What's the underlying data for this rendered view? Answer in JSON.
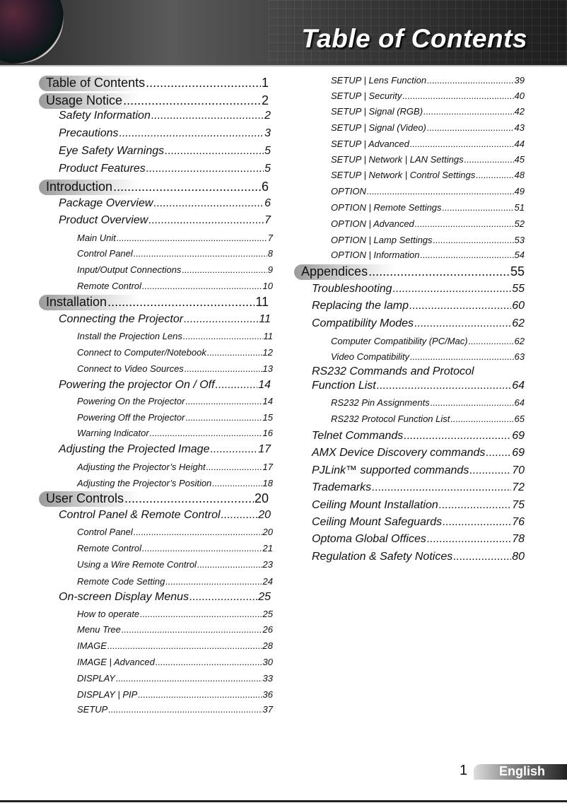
{
  "header": {
    "title": "Table of Contents"
  },
  "footer": {
    "page": "1",
    "language": "English"
  },
  "left": [
    {
      "level": 1,
      "text": "Table of Contents",
      "page": "1"
    },
    {
      "level": 1,
      "text": "Usage Notice",
      "page": "2"
    },
    {
      "level": 2,
      "text": "Safety Information",
      "page": "2"
    },
    {
      "level": 2,
      "text": "Precautions",
      "page": "3"
    },
    {
      "level": 2,
      "text": "Eye Safety Warnings",
      "page": "5"
    },
    {
      "level": 2,
      "text": "Product Features",
      "page": "5"
    },
    {
      "level": 1,
      "text": "Introduction",
      "page": "6"
    },
    {
      "level": 2,
      "text": "Package Overview",
      "page": "6"
    },
    {
      "level": 2,
      "text": "Product Overview",
      "page": "7"
    },
    {
      "level": 3,
      "text": "Main Unit",
      "page": "7"
    },
    {
      "level": 3,
      "text": "Control Panel",
      "page": "8"
    },
    {
      "level": 3,
      "text": "Input/Output Connections",
      "page": "9"
    },
    {
      "level": 3,
      "text": "Remote Control",
      "page": "10"
    },
    {
      "level": 1,
      "text": "Installation",
      "page": "11"
    },
    {
      "level": 2,
      "text": "Connecting the Projector",
      "page": "11"
    },
    {
      "level": 3,
      "text": "Install the Projection Lens",
      "page": "11"
    },
    {
      "level": 3,
      "text": "Connect to Computer/Notebook",
      "page": "12"
    },
    {
      "level": 3,
      "text": "Connect to Video Sources",
      "page": "13"
    },
    {
      "level": 2,
      "text": "Powering the projector On / Off",
      "page": "14"
    },
    {
      "level": 3,
      "text": "Powering On the Projector",
      "page": "14"
    },
    {
      "level": 3,
      "text": "Powering Off the Projector",
      "page": "15"
    },
    {
      "level": 3,
      "text": "Warning Indicator",
      "page": "16"
    },
    {
      "level": 2,
      "text": "Adjusting the Projected Image",
      "page": "17"
    },
    {
      "level": 3,
      "text": "Adjusting the Projector’s Height",
      "page": "17"
    },
    {
      "level": 3,
      "text": "Adjusting the Projector’s Position",
      "page": "18"
    },
    {
      "level": 1,
      "text": "User Controls",
      "page": "20"
    },
    {
      "level": 2,
      "text": "Control Panel & Remote Control",
      "page": "20"
    },
    {
      "level": 3,
      "text": "Control Panel",
      "page": "20"
    },
    {
      "level": 3,
      "text": "Remote Control",
      "page": "21"
    },
    {
      "level": 3,
      "text": "Using a Wire Remote Control",
      "page": "23"
    },
    {
      "level": 3,
      "text": "Remote Code Setting",
      "page": "24"
    },
    {
      "level": 2,
      "text": "On-screen Display Menus",
      "page": "25"
    },
    {
      "level": 3,
      "text": "How to operate",
      "page": "25"
    },
    {
      "level": 3,
      "text": "Menu Tree",
      "page": "26"
    },
    {
      "level": 3,
      "text": "IMAGE",
      "page": "28"
    },
    {
      "level": 3,
      "text": "IMAGE | Advanced",
      "page": "30"
    },
    {
      "level": 3,
      "text": "DISPLAY",
      "page": "33"
    },
    {
      "level": 3,
      "text": "DISPLAY | PIP",
      "page": "36"
    },
    {
      "level": 3,
      "text": "SETUP",
      "page": "37"
    }
  ],
  "right": [
    {
      "level": 3,
      "text": "SETUP | Lens Function",
      "page": "39"
    },
    {
      "level": 3,
      "text": "SETUP | Security",
      "page": "40"
    },
    {
      "level": 3,
      "text": "SETUP | Signal (RGB)",
      "page": "42"
    },
    {
      "level": 3,
      "text": "SETUP | Signal (Video)",
      "page": "43"
    },
    {
      "level": 3,
      "text": "SETUP | Advanced",
      "page": "44"
    },
    {
      "level": 3,
      "text": "SETUP | Network  | LAN Settings",
      "page": "45"
    },
    {
      "level": 3,
      "text": "SETUP | Network  | Control Settings",
      "page": "48"
    },
    {
      "level": 3,
      "text": "OPTION",
      "page": "49"
    },
    {
      "level": 3,
      "text": "OPTION | Remote Settings",
      "page": "51"
    },
    {
      "level": 3,
      "text": "OPTION | Advanced",
      "page": "52"
    },
    {
      "level": 3,
      "text": "OPTION | Lamp Settings",
      "page": "53"
    },
    {
      "level": 3,
      "text": "OPTION | Information",
      "page": "54"
    },
    {
      "level": 1,
      "text": "Appendices",
      "page": "55"
    },
    {
      "level": 2,
      "text": "Troubleshooting",
      "page": "55"
    },
    {
      "level": 2,
      "text": "Replacing the lamp",
      "page": "60"
    },
    {
      "level": 2,
      "text": "Compatibility Modes",
      "page": "62"
    },
    {
      "level": 3,
      "text": "Computer Compatibility (PC/Mac)",
      "page": "62"
    },
    {
      "level": 3,
      "text": "Video Compatibility",
      "page": "63"
    },
    {
      "level": 2,
      "text": "Function List",
      "prefix": "RS232 Commands and Protocol",
      "page": "64"
    },
    {
      "level": 3,
      "text": "RS232 Pin Assignments",
      "page": "64"
    },
    {
      "level": 3,
      "text": "RS232 Protocol Function List",
      "page": "65"
    },
    {
      "level": 2,
      "text": "Telnet Commands",
      "page": "69"
    },
    {
      "level": 2,
      "text": "AMX Device Discovery commands",
      "page": "69"
    },
    {
      "level": 2,
      "text": "PJLink™ supported commands",
      "page": "70"
    },
    {
      "level": 2,
      "text": "Trademarks",
      "page": "72"
    },
    {
      "level": 2,
      "text": "Ceiling Mount Installation",
      "page": "75"
    },
    {
      "level": 2,
      "text": "Ceiling Mount Safeguards",
      "page": "76"
    },
    {
      "level": 2,
      "text": "Optoma Global Offices",
      "page": "78"
    },
    {
      "level": 2,
      "text": "Regulation & Safety Notices",
      "page": "80"
    }
  ]
}
